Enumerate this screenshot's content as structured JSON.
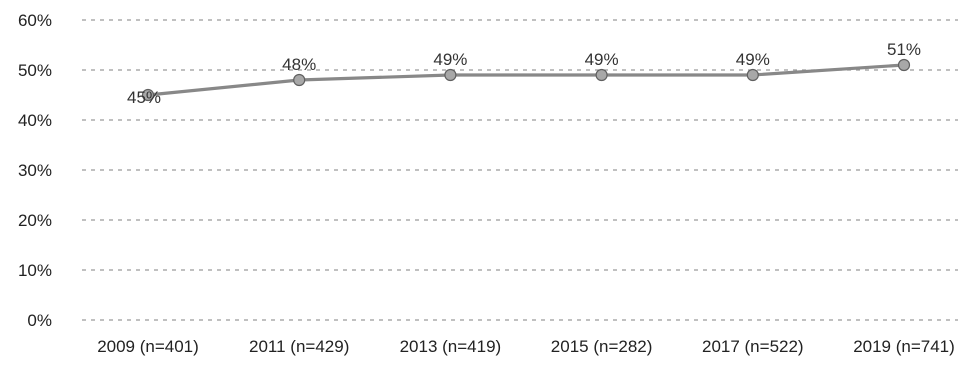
{
  "chart_data": {
    "type": "line",
    "categories": [
      "2009 (n=401)",
      "2011 (n=429)",
      "2013 (n=419)",
      "2015 (n=282)",
      "2017 (n=522)",
      "2019 (n=741)"
    ],
    "series": [
      {
        "values": [
          45,
          48,
          49,
          49,
          49,
          51
        ],
        "data_labels": [
          "45%",
          "48%",
          "49%",
          "49%",
          "49%",
          "51%"
        ],
        "color": "#888888"
      }
    ],
    "y_ticks": [
      0,
      10,
      20,
      30,
      40,
      50,
      60
    ],
    "y_tick_labels": [
      "0%",
      "10%",
      "20%",
      "30%",
      "40%",
      "50%",
      "60%"
    ],
    "ylim": [
      0,
      60
    ],
    "grid": true,
    "legend": false,
    "title": "",
    "xlabel": "",
    "ylabel": ""
  }
}
